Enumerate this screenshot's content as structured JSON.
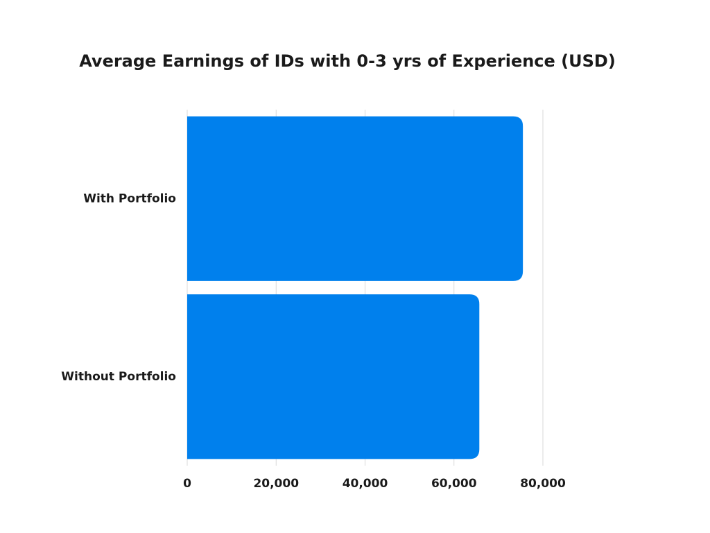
{
  "chart_data": {
    "type": "bar",
    "orientation": "horizontal",
    "title": "Average Earnings of IDs with 0-3 yrs of Experience (USD)",
    "categories": [
      "With Portfolio",
      "Without Portfolio"
    ],
    "values": [
      75500,
      65700
    ],
    "xlim": [
      0,
      80000
    ],
    "xticks": [
      0,
      20000,
      40000,
      60000,
      80000
    ],
    "xtick_labels": [
      "0",
      "20,000",
      "40,000",
      "60,000",
      "80,000"
    ],
    "xlabel": "",
    "ylabel": "",
    "grid": "vertical",
    "legend": "none",
    "bar_color": "#0080ED",
    "grid_color": "#d9d9d9"
  }
}
